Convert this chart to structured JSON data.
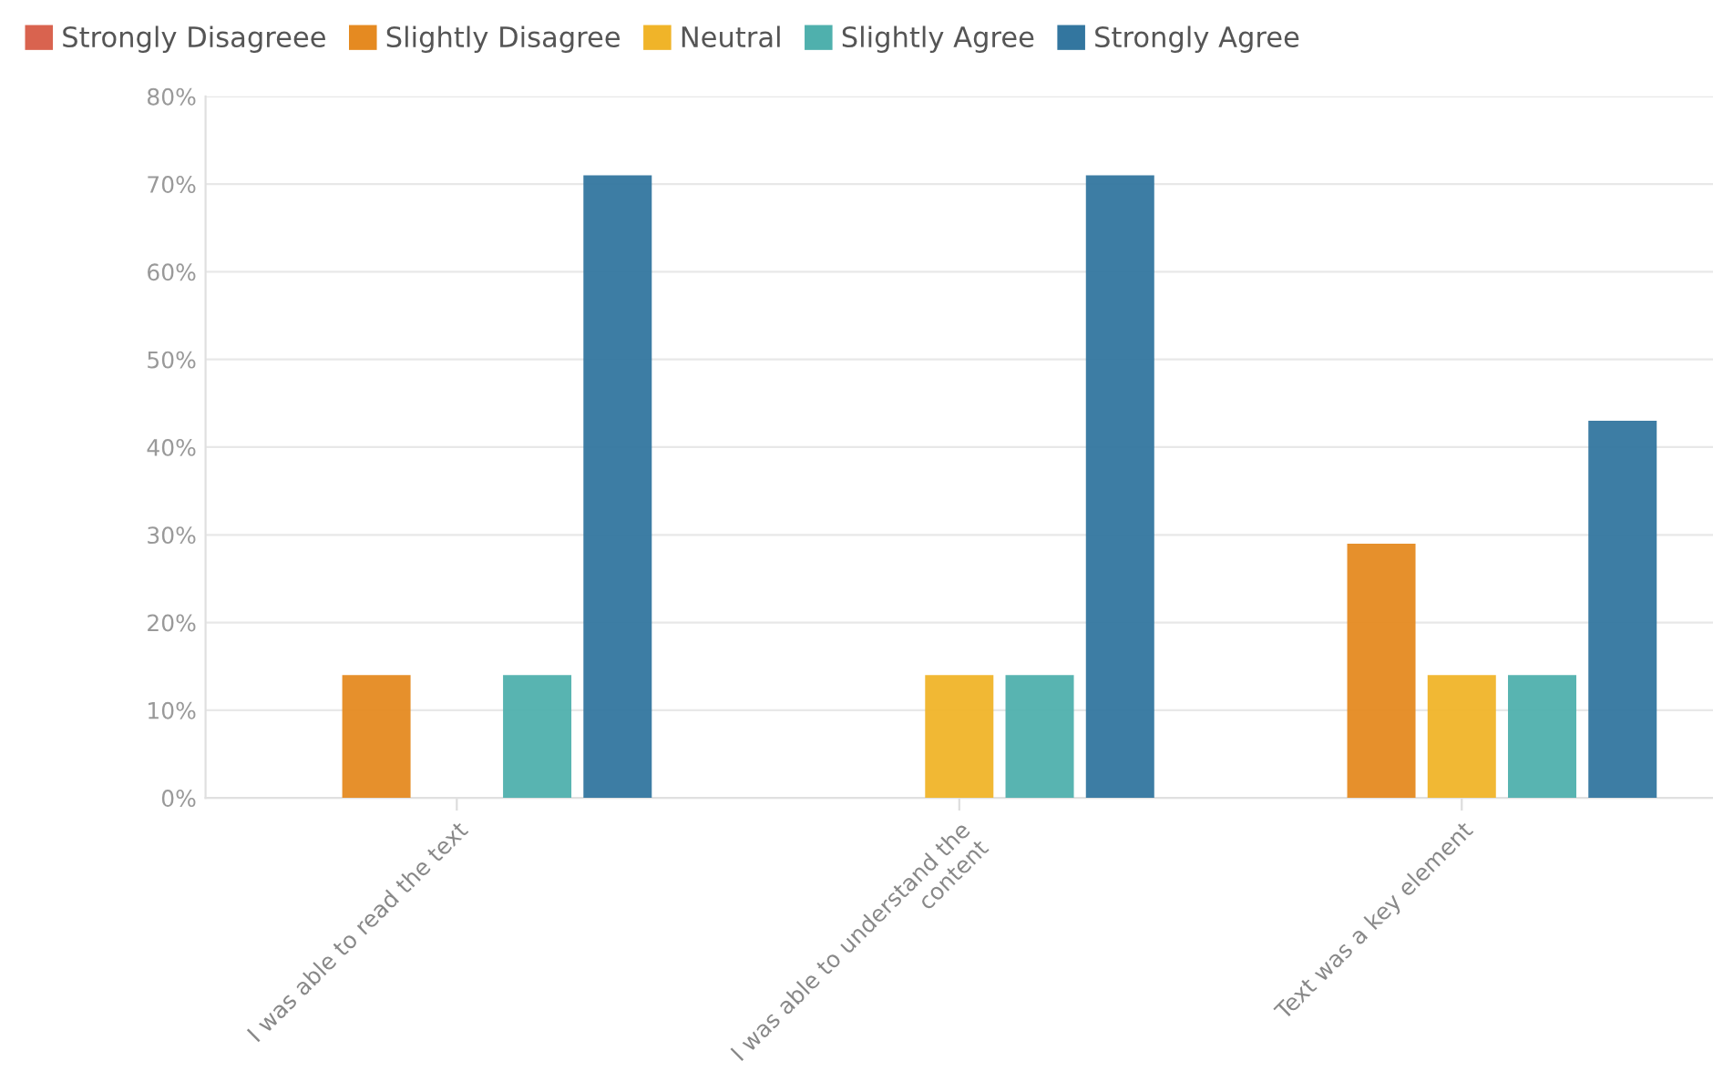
{
  "chart_data": {
    "type": "bar",
    "categories": [
      "I was able to read the text",
      "I was able to understand the content",
      "Text was a key element"
    ],
    "series": [
      {
        "name": "Strongly Disagreee",
        "color": "#d9634f",
        "values": [
          0,
          0,
          0
        ]
      },
      {
        "name": "Slightly Disagree",
        "color": "#e58a21",
        "values": [
          14,
          0,
          29
        ]
      },
      {
        "name": "Neutral",
        "color": "#f0b429",
        "values": [
          0,
          14,
          14
        ]
      },
      {
        "name": "Slightly Agree",
        "color": "#4fb0ad",
        "values": [
          14,
          14,
          14
        ]
      },
      {
        "name": "Strongly Agree",
        "color": "#33769f",
        "values": [
          71,
          71,
          43
        ]
      }
    ],
    "ylim": [
      0,
      80
    ],
    "yticks": [
      {
        "value": 0,
        "label": "0%"
      },
      {
        "value": 10,
        "label": "10%"
      },
      {
        "value": 20,
        "label": "20%"
      },
      {
        "value": 30,
        "label": "30%"
      },
      {
        "value": 40,
        "label": "40%"
      },
      {
        "value": 50,
        "label": "50%"
      },
      {
        "value": 60,
        "label": "60%"
      },
      {
        "value": 70,
        "label": "70%"
      },
      {
        "value": 80,
        "label": "80%"
      }
    ],
    "grid": "y",
    "legend": "top left"
  }
}
